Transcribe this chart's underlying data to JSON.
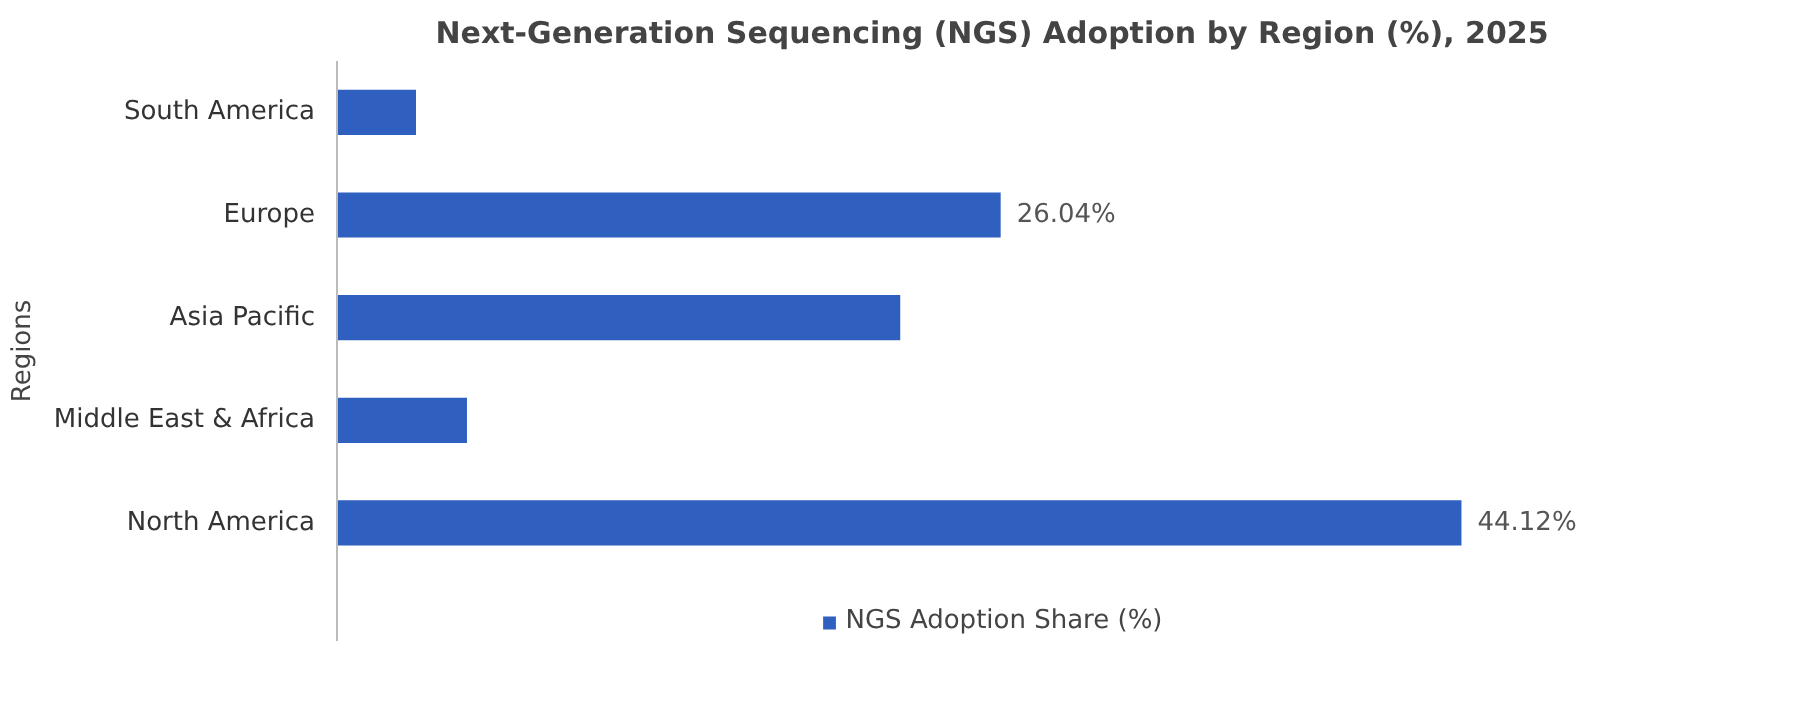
{
  "chart_data": {
    "type": "bar",
    "orientation": "horizontal",
    "title": "Next-Generation Sequencing (NGS) Adoption by Region (%), 2025",
    "ylabel": "Regions",
    "categories": [
      "South America",
      "Europe",
      "Asia Pacific",
      "Middle East & Africa",
      "North America"
    ],
    "series": [
      {
        "name": "NGS Adoption Share (%)",
        "color": "#2f5fbf",
        "values": [
          3.1,
          26.04,
          22.1,
          5.1,
          44.12
        ],
        "value_labels": [
          null,
          "26.04%",
          null,
          null,
          "44.12%"
        ]
      }
    ],
    "legend": "bottom",
    "grid": false
  }
}
